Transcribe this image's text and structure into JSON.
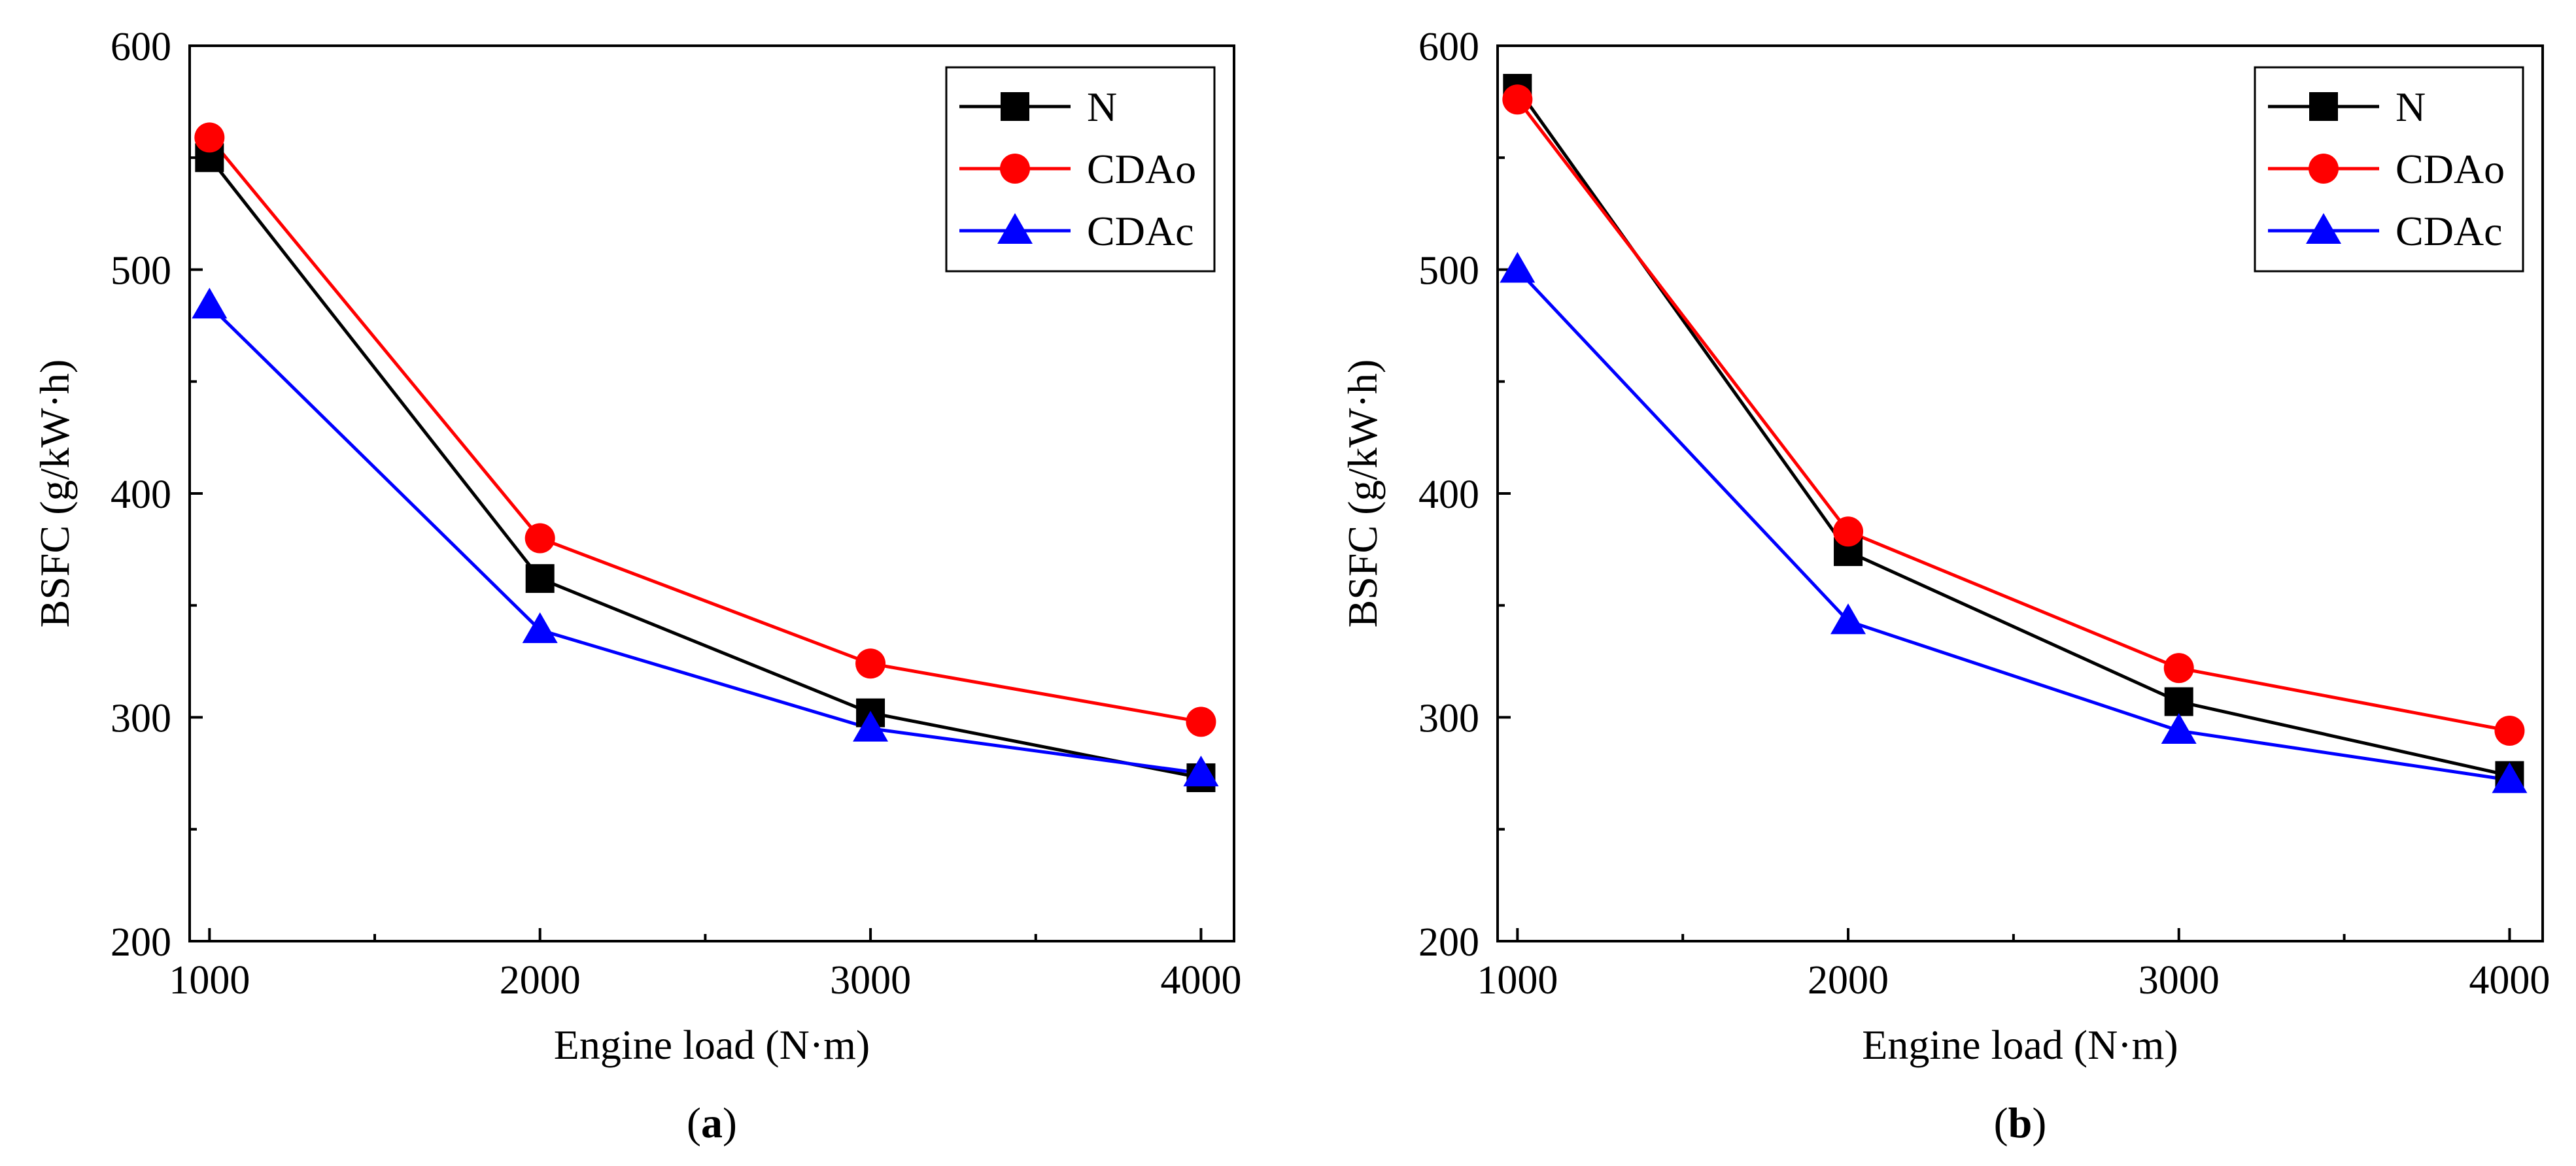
{
  "chart_data": [
    {
      "type": "line",
      "panel_label": "a",
      "xlabel": "Engine load (N·m)",
      "ylabel": "BSFC (g/kW·h)",
      "x": [
        1000,
        2000,
        3000,
        4000
      ],
      "xticks": [
        "1000",
        "2000",
        "3000",
        "4000"
      ],
      "yticks": [
        "200",
        "300",
        "400",
        "500",
        "600"
      ],
      "xlim": [
        940,
        4100
      ],
      "ylim": [
        200,
        600
      ],
      "legend_position": "top-right",
      "series": [
        {
          "name": "N",
          "marker": "square",
          "color": "#000000",
          "values": [
            550,
            362,
            302,
            273
          ]
        },
        {
          "name": "CDAo",
          "marker": "circle",
          "color": "#ff0000",
          "values": [
            559,
            380,
            324,
            298
          ]
        },
        {
          "name": "CDAc",
          "marker": "triangle",
          "color": "#0000ff",
          "values": [
            484,
            339,
            295,
            275
          ]
        }
      ]
    },
    {
      "type": "line",
      "panel_label": "b",
      "xlabel": "Engine load (N·m)",
      "ylabel": "BSFC (g/kW·h)",
      "x": [
        1000,
        2000,
        3000,
        4000
      ],
      "xticks": [
        "1000",
        "2000",
        "3000",
        "4000"
      ],
      "yticks": [
        "200",
        "300",
        "400",
        "500",
        "600"
      ],
      "xlim": [
        940,
        4100
      ],
      "ylim": [
        200,
        600
      ],
      "legend_position": "top-right",
      "series": [
        {
          "name": "N",
          "marker": "square",
          "color": "#000000",
          "values": [
            581,
            374,
            307,
            274
          ]
        },
        {
          "name": "CDAo",
          "marker": "circle",
          "color": "#ff0000",
          "values": [
            576,
            383,
            322,
            294
          ]
        },
        {
          "name": "CDAc",
          "marker": "triangle",
          "color": "#0000ff",
          "values": [
            500,
            343,
            294,
            272
          ]
        }
      ]
    }
  ]
}
